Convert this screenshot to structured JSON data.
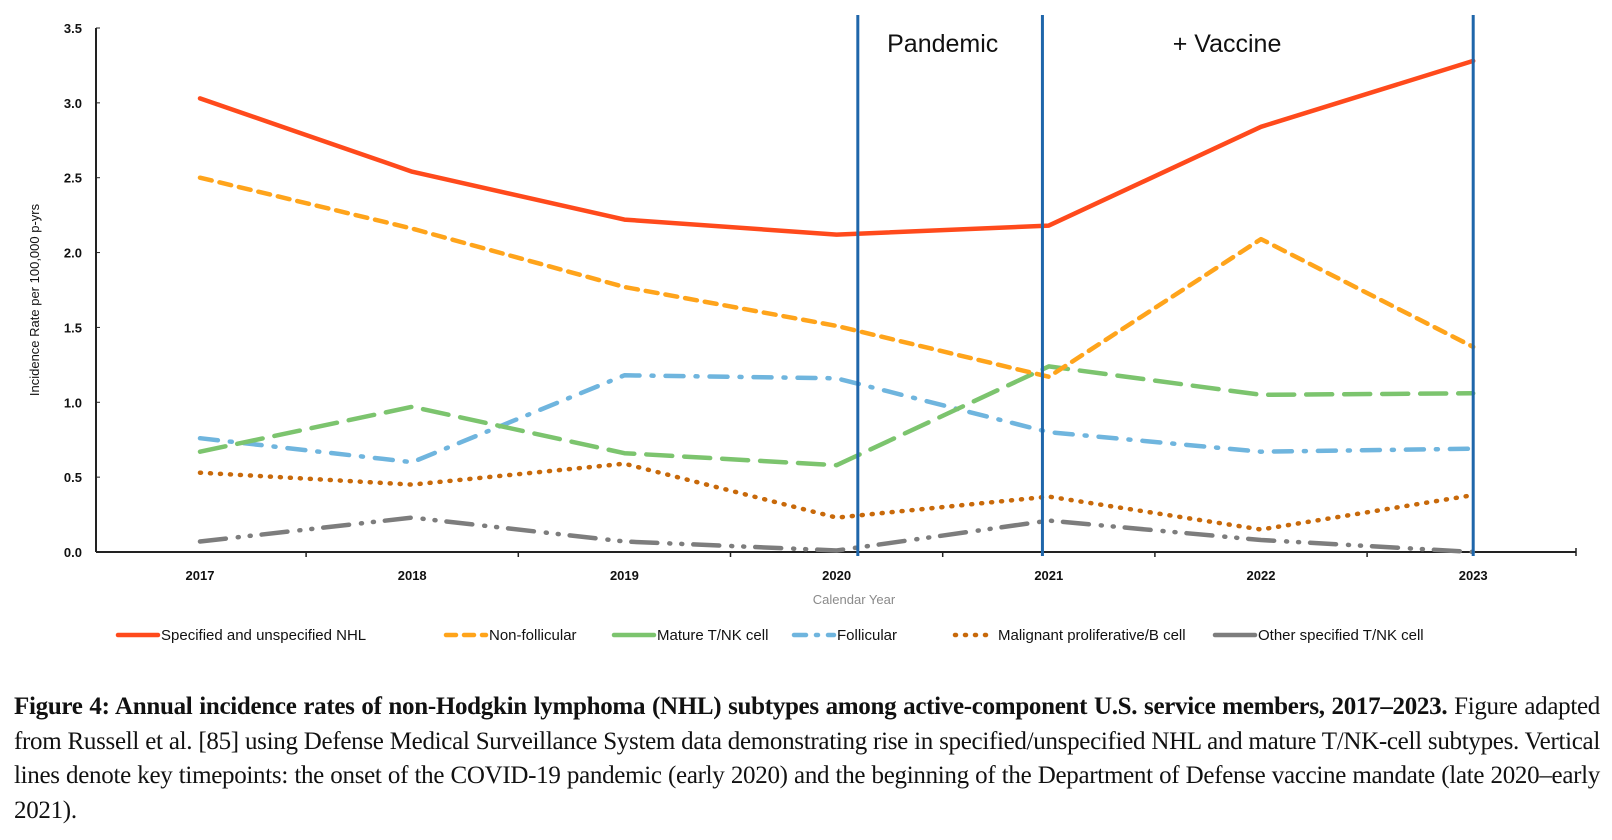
{
  "chart_data": {
    "type": "line",
    "title": "",
    "xlabel": "Calendar Year",
    "ylabel": "Incidence Rate per 100,000 p-yrs",
    "x": [
      "2017",
      "2018",
      "2019",
      "2020",
      "2021",
      "2022",
      "2023"
    ],
    "ylim": [
      0,
      3.5
    ],
    "yticks": [
      "0.0",
      "0.5",
      "1.0",
      "1.5",
      "2.0",
      "2.5",
      "3.0",
      "3.5"
    ],
    "grid": false,
    "legend_position": "bottom",
    "series": [
      {
        "name": "Specified and unspecified NHL",
        "color": "#ff4a1c",
        "style": "solid",
        "values": [
          3.03,
          2.54,
          2.22,
          2.12,
          2.18,
          2.84,
          3.28
        ]
      },
      {
        "name": "Non-follicular",
        "color": "#ffa41b",
        "style": "dashed",
        "values": [
          2.5,
          2.16,
          1.77,
          1.51,
          1.17,
          2.09,
          1.37
        ]
      },
      {
        "name": "Mature T/NK cell",
        "color": "#7cc46e",
        "style": "longdash",
        "values": [
          0.67,
          0.97,
          0.66,
          0.58,
          1.24,
          1.05,
          1.06
        ]
      },
      {
        "name": "Follicular",
        "color": "#6fb5de",
        "style": "dashdot",
        "values": [
          0.76,
          0.6,
          1.18,
          1.16,
          0.8,
          0.67,
          0.69
        ]
      },
      {
        "name": "Malignant proliferative/B cell",
        "color": "#c8690a",
        "style": "dotted",
        "values": [
          0.53,
          0.45,
          0.59,
          0.23,
          0.37,
          0.15,
          0.38
        ]
      },
      {
        "name": "Other specified T/NK cell",
        "color": "#7d7d7d",
        "style": "longdashdotdot",
        "values": [
          0.07,
          0.23,
          0.07,
          0.01,
          0.21,
          0.08,
          0.0
        ]
      }
    ],
    "vertical_markers": [
      {
        "x": 2020.1,
        "color": "#1f66aa"
      },
      {
        "x": 2020.97,
        "color": "#1f66aa"
      },
      {
        "x": 2023.0,
        "color": "#1f66aa"
      }
    ],
    "annotations": [
      {
        "text": "Pandemic",
        "x": 2020.5
      },
      {
        "text": "+ Vaccine",
        "x": 2021.84
      }
    ]
  },
  "caption": {
    "bold": "Figure 4: Annual incidence rates of non-Hodgkin lymphoma (NHL) subtypes among active-component U.S. service members, 2017–2023.",
    "text": " Figure adapted from Russell et al. [85] using Defense Medical Surveillance System data demonstrating rise in specified/unspecified NHL and mature T/NK-cell subtypes. Vertical lines denote key timepoints: the onset of the COVID-19 pandemic (early 2020) and the beginning of the Department of Defense vaccine mandate (late 2020–early 2021)."
  }
}
